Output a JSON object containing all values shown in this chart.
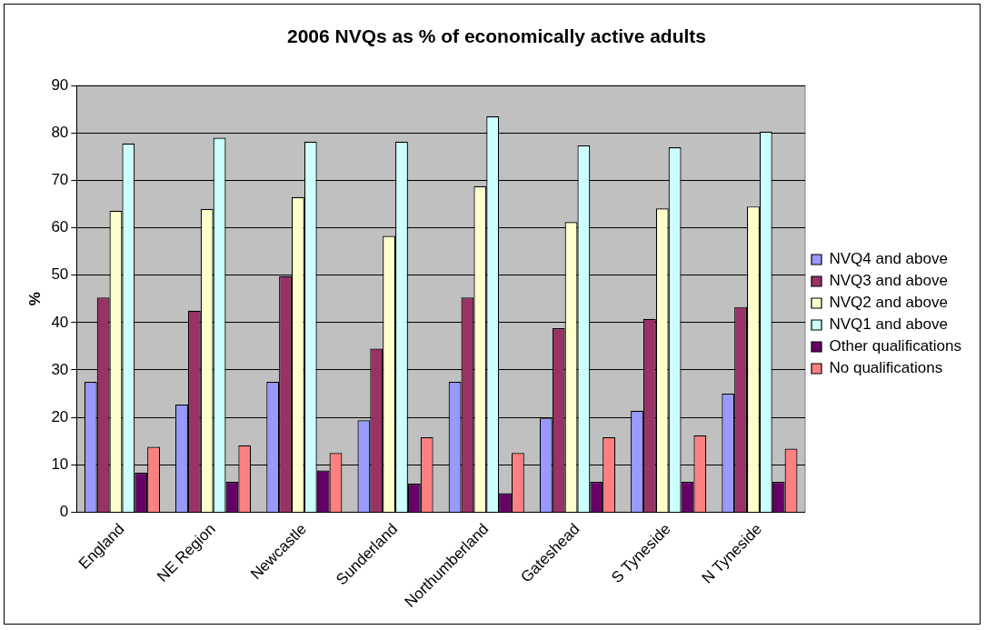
{
  "chart_data": {
    "type": "bar",
    "title": "2006 NVQs as % of economically active adults",
    "ylabel": "%",
    "categories": [
      "England",
      "NE Region",
      "Newcastle",
      "Sunderland",
      "Northumberland",
      "Gateshead",
      "S Tyneside",
      "N Tyneside"
    ],
    "series": [
      {
        "name": "NVQ4 and above",
        "color": "#9999ff",
        "values": [
          27.5,
          22.7,
          27.5,
          19.4,
          27.5,
          19.8,
          21.4,
          25
        ]
      },
      {
        "name": "NVQ3 and above",
        "color": "#993366",
        "values": [
          45.3,
          42.5,
          49.8,
          34.5,
          45.3,
          38.8,
          40.8,
          43.3
        ]
      },
      {
        "name": "NVQ2 and above",
        "color": "#ffffcc",
        "values": [
          63.6,
          64,
          66.5,
          58.3,
          68.8,
          61.2,
          64.1,
          64.5
        ]
      },
      {
        "name": "NVQ1 and above",
        "color": "#ccffff",
        "values": [
          77.8,
          79,
          78.2,
          78.2,
          83.5,
          77.4,
          77,
          80.3
        ]
      },
      {
        "name": "Other qualifications",
        "color": "#660066",
        "values": [
          8.3,
          6.4,
          8.8,
          6,
          4,
          6.4,
          6.4,
          6.4
        ]
      },
      {
        "name": "No qualifications",
        "color": "#ff8080",
        "values": [
          13.8,
          14.1,
          12.5,
          15.8,
          12.5,
          15.8,
          16.2,
          13.4
        ]
      }
    ],
    "ylim": [
      0,
      90
    ],
    "yticks": [
      0,
      10,
      20,
      30,
      40,
      50,
      60,
      70,
      80,
      90
    ],
    "grid": "y",
    "legend": "right"
  }
}
